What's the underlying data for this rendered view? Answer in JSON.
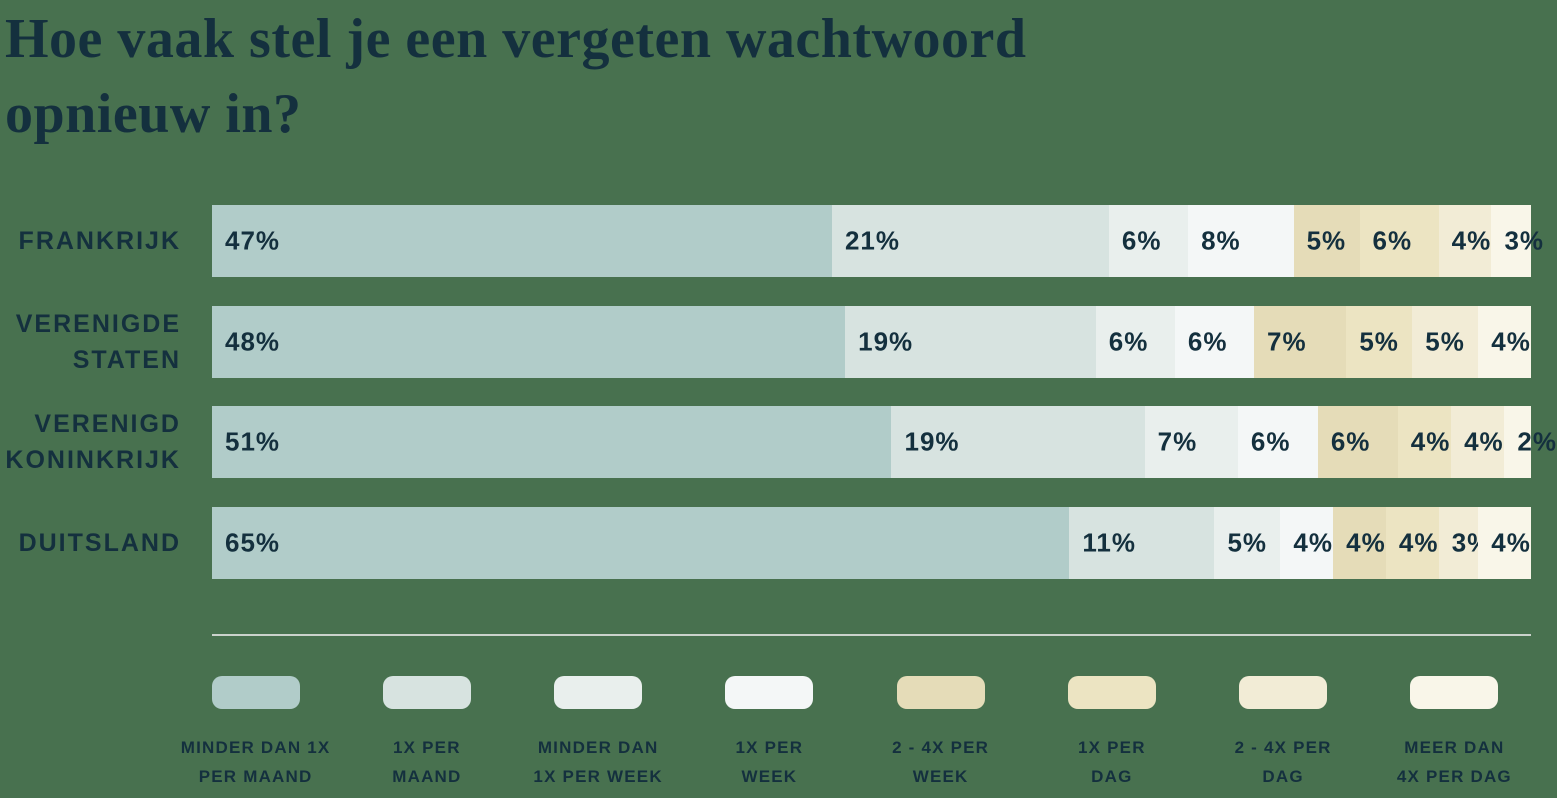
{
  "colors": {
    "background": "#48714F",
    "text": "#14303E",
    "divider": "#CBD2CC"
  },
  "chart_data": {
    "type": "bar",
    "variant": "horizontal-stacked-percent",
    "title": "Hoe vaak stel je een vergeten wachtwoord opnieuw in?",
    "title_lines": [
      "Hoe vaak stel je een vergeten wachtwoord",
      "opnieuw in?"
    ],
    "value_suffix": "%",
    "x_range": [
      0,
      100
    ],
    "grid": false,
    "legend_position": "bottom",
    "categories": [
      "Frankrijk",
      "Verenigde Staten",
      "Verenigd Koninkrijk",
      "Duitsland"
    ],
    "category_labels": [
      [
        "FRANKRIJK"
      ],
      [
        "VERENIGDE",
        "STATEN"
      ],
      [
        "VERENIGD",
        "KONINKRIJK"
      ],
      [
        "DUITSLAND"
      ]
    ],
    "series": [
      {
        "name": "Minder dan 1x per maand",
        "legend_lines": [
          "MINDER DAN 1X",
          "PER MAAND"
        ],
        "color": "#B1CCC9",
        "values": [
          47,
          48,
          51,
          65
        ]
      },
      {
        "name": "1x per maand",
        "legend_lines": [
          "1X PER",
          "MAAND"
        ],
        "color": "#D7E3E0",
        "values": [
          21,
          19,
          19,
          11
        ]
      },
      {
        "name": "Minder dan 1x per week",
        "legend_lines": [
          "MINDER DAN",
          "1X PER WEEK"
        ],
        "color": "#E9EFED",
        "values": [
          6,
          6,
          7,
          5
        ]
      },
      {
        "name": "1x per week",
        "legend_lines": [
          "1X PER",
          "WEEK"
        ],
        "color": "#F4F7F7",
        "values": [
          8,
          6,
          6,
          4
        ]
      },
      {
        "name": "2 - 4x per week",
        "legend_lines": [
          "2 - 4X PER",
          "WEEK"
        ],
        "color": "#E5DCB8",
        "values": [
          5,
          7,
          6,
          4
        ]
      },
      {
        "name": "1x per dag",
        "legend_lines": [
          "1X PER",
          "DAG"
        ],
        "color": "#ECE4C2",
        "values": [
          6,
          5,
          4,
          4
        ]
      },
      {
        "name": "2 - 4x per dag",
        "legend_lines": [
          "2 - 4X PER",
          "DAG"
        ],
        "color": "#F2ECD6",
        "values": [
          4,
          5,
          4,
          3
        ]
      },
      {
        "name": "Meer dan 4x per dag",
        "legend_lines": [
          "MEER DAN",
          "4X PER DAG"
        ],
        "color": "#F9F6E9",
        "values": [
          3,
          4,
          2,
          4
        ]
      }
    ]
  }
}
